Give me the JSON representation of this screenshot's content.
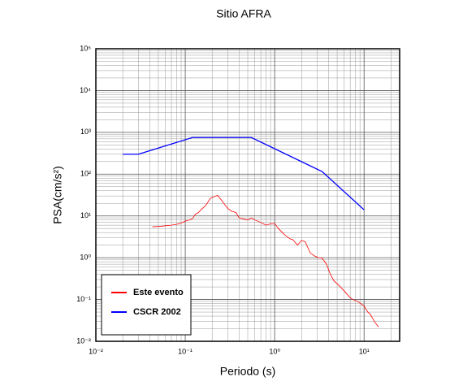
{
  "chart_data": {
    "type": "line",
    "title": "Sitio AFRA",
    "x_label": "Periodo (s)",
    "y_label": "PSA(cm/s²)",
    "log_x": true,
    "log_y": true,
    "grid": true,
    "minor_grid": true,
    "legend_position": "lower left",
    "xlim": [
      0.01,
      25
    ],
    "ylim": [
      0.01,
      100000
    ],
    "xticks": [
      {
        "value": 0.01,
        "label": "10⁻²"
      },
      {
        "value": 0.1,
        "label": "10⁻¹"
      },
      {
        "value": 1,
        "label": "10⁰"
      },
      {
        "value": 10,
        "label": "10¹"
      }
    ],
    "yticks": [
      {
        "value": 0.01,
        "label": "10⁻²"
      },
      {
        "value": 0.1,
        "label": "10⁻¹"
      },
      {
        "value": 1,
        "label": "10⁰"
      },
      {
        "value": 10,
        "label": "10¹"
      },
      {
        "value": 100,
        "label": "10²"
      },
      {
        "value": 1000,
        "label": "10³"
      },
      {
        "value": 10000,
        "label": "10⁴"
      },
      {
        "value": 100000,
        "label": "10⁵"
      }
    ],
    "series": [
      {
        "name": "Este evento",
        "color": "#ff0000",
        "x": [
          0.043,
          0.05,
          0.06,
          0.07,
          0.08,
          0.09,
          0.1,
          0.11,
          0.12,
          0.13,
          0.14,
          0.15,
          0.17,
          0.19,
          0.21,
          0.23,
          0.25,
          0.27,
          0.3,
          0.33,
          0.37,
          0.4,
          0.45,
          0.5,
          0.55,
          0.6,
          0.7,
          0.8,
          0.9,
          1.0,
          1.1,
          1.3,
          1.5,
          1.6,
          1.8,
          2.0,
          2.2,
          2.5,
          2.8,
          3.1,
          3.4,
          3.8,
          4.2,
          4.6,
          5.2,
          6.0,
          7.0,
          7.5,
          8.5,
          10,
          11,
          11.7,
          13,
          14.5
        ],
        "values": [
          5.5,
          5.6,
          5.8,
          6,
          6.3,
          6.8,
          7.5,
          8,
          8.5,
          11,
          12,
          14,
          18,
          26,
          29,
          31,
          25,
          20,
          15,
          13,
          12,
          9,
          8.5,
          8,
          9,
          8,
          7,
          6,
          6.5,
          6.6,
          5,
          3.5,
          2.8,
          2.7,
          2,
          2.6,
          2.4,
          1.3,
          1.1,
          1.0,
          0.98,
          0.7,
          0.4,
          0.28,
          0.22,
          0.16,
          0.11,
          0.1,
          0.09,
          0.07,
          0.05,
          0.045,
          0.03,
          0.022
        ]
      },
      {
        "name": "CSCR 2002",
        "color": "#0000ff",
        "x": [
          0.02,
          0.03,
          0.12,
          0.55,
          3.4,
          10
        ],
        "values": [
          300,
          300,
          750,
          750,
          115,
          14
        ]
      }
    ]
  }
}
